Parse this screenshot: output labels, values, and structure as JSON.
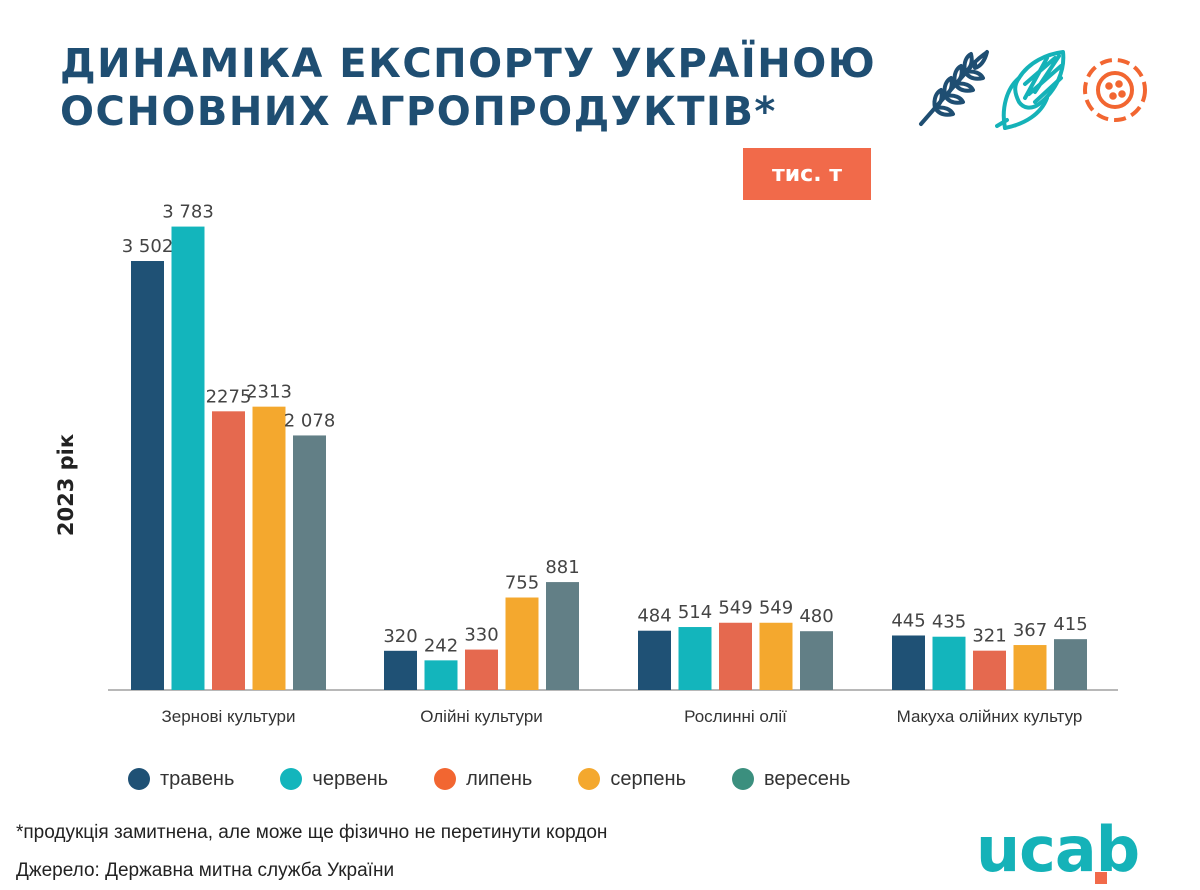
{
  "title": {
    "line1": "ДИНАМІКА ЕКСПОРТУ УКРАЇНОЮ",
    "line2": "ОСНОВНИХ АГРОПРОДУКТІВ*"
  },
  "unit_badge": "тис. т",
  "icons": [
    "wheat-icon",
    "corn-icon",
    "sunflower-icon"
  ],
  "colors": {
    "title": "#1f4e72",
    "accent": "#f16a4a",
    "logo": "#15b2b8"
  },
  "chart_data": {
    "type": "bar",
    "ylabel": "2023 рік",
    "categories": [
      "Зернові культури",
      "Олійні культури",
      "Рослинні олії",
      "Макуха олійних культур"
    ],
    "ylim": [
      0,
      4000
    ],
    "series": [
      {
        "name": "травень",
        "color": "#1f5175",
        "values": [
          3502,
          320,
          484,
          445
        ],
        "labels": [
          "3 502",
          "320",
          "484",
          "445"
        ]
      },
      {
        "name": "червень",
        "color": "#13b5bc",
        "values": [
          3783,
          242,
          514,
          435
        ],
        "labels": [
          "3 783",
          "242",
          "514",
          "435"
        ]
      },
      {
        "name": "липень",
        "color": "#e5694f",
        "values": [
          2275,
          330,
          549,
          321
        ],
        "labels": [
          "2275",
          "330",
          "549",
          "321"
        ]
      },
      {
        "name": "серпень",
        "color": "#f4a82e",
        "values": [
          2313,
          755,
          549,
          367
        ],
        "labels": [
          "2313",
          "755",
          "549",
          "367"
        ]
      },
      {
        "name": "вересень",
        "color": "#627f86",
        "values": [
          2078,
          881,
          480,
          415
        ],
        "labels": [
          "2 078",
          "881",
          "480",
          "415"
        ]
      }
    ],
    "legend_colors": [
      "#1f5175",
      "#13b5bc",
      "#f26631",
      "#f4a82e",
      "#3b8f7e"
    ],
    "legend": "bottom",
    "grid": false
  },
  "footnote": "*продукція замитнена, але може ще фізично не перетинути кордон",
  "source": "Джерело: Державна митна служба України",
  "logo": "ucab"
}
